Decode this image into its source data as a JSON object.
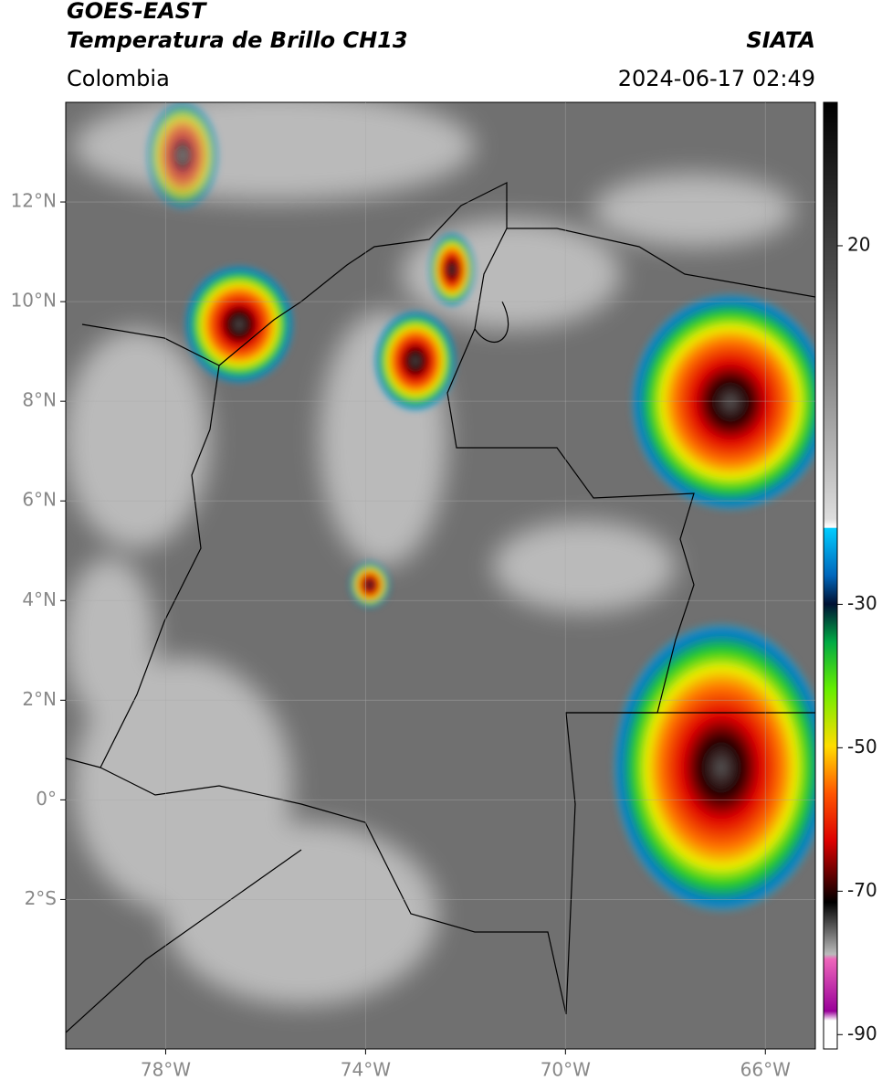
{
  "header": {
    "title": "GOES-EAST",
    "subtitle": "Temperatura de Brillo CH13",
    "source": "SIATA",
    "region": "Colombia",
    "timestamp": "2024-06-17 02:49"
  },
  "map": {
    "xlim": [
      -80,
      -65
    ],
    "ylim": [
      -5,
      14
    ],
    "xticks": [
      {
        "value": -78,
        "label": "78°W"
      },
      {
        "value": -74,
        "label": "74°W"
      },
      {
        "value": -70,
        "label": "70°W"
      },
      {
        "value": -66,
        "label": "66°W"
      }
    ],
    "yticks": [
      {
        "value": 12,
        "label": "12°N"
      },
      {
        "value": 10,
        "label": "10°N"
      },
      {
        "value": 8,
        "label": "8°N"
      },
      {
        "value": 6,
        "label": "6°N"
      },
      {
        "value": 4,
        "label": "4°N"
      },
      {
        "value": 2,
        "label": "2°N"
      },
      {
        "value": 0,
        "label": "0°"
      },
      {
        "value": -2,
        "label": "2°S"
      }
    ],
    "grid": true
  },
  "colorbar": {
    "lim": [
      -92,
      40
    ],
    "ticks": [
      20,
      -30,
      -50,
      -70,
      -90
    ]
  }
}
